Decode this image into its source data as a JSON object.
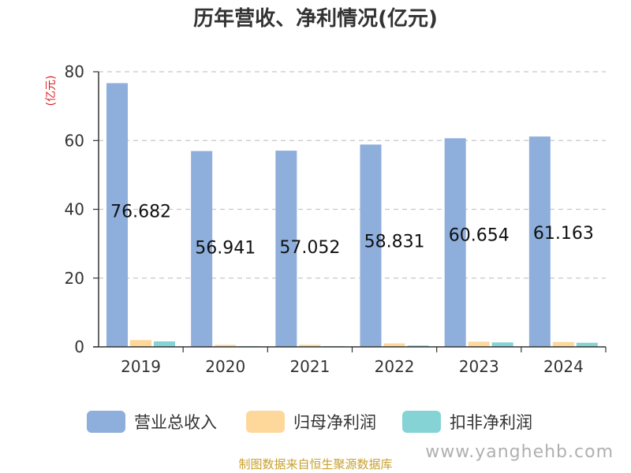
{
  "chart_data": {
    "type": "bar",
    "title": "历年营收、净利情况(亿元)",
    "ylabel": "(亿元)",
    "categories": [
      "2019",
      "2020",
      "2021",
      "2022",
      "2023",
      "2024"
    ],
    "yticks": [
      0,
      20,
      40,
      60,
      80
    ],
    "ylim": [
      0,
      80
    ],
    "grid": true,
    "legend_position": "bottom",
    "series": [
      {
        "name": "营业总收入",
        "color": "#8eaedb",
        "values": [
          76.682,
          56.941,
          57.052,
          58.831,
          60.654,
          61.163
        ]
      },
      {
        "name": "归母净利润",
        "color": "#fdd89a",
        "values": [
          2.0,
          0.6,
          0.6,
          1.0,
          1.5,
          1.4
        ]
      },
      {
        "name": "扣非净利润",
        "color": "#86d3d6",
        "values": [
          1.6,
          0.2,
          0.2,
          0.4,
          1.3,
          1.2
        ]
      }
    ],
    "data_labels": [
      "76.682",
      "56.941",
      "57.052",
      "58.831",
      "60.654",
      "61.163"
    ]
  },
  "source_text": "制图数据来自恒生聚源数据库",
  "watermark_text": "www.yanghehb.com"
}
